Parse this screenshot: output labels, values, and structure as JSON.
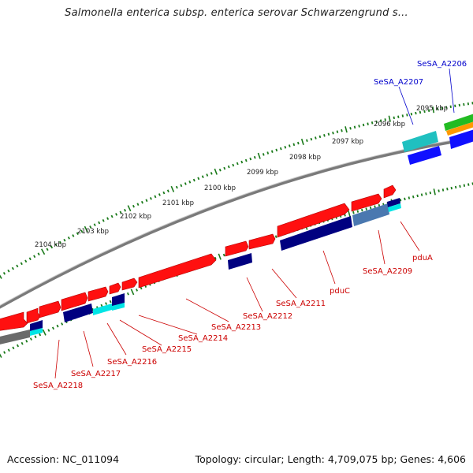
{
  "title": "Salmonella enterica subsp. enterica serovar Schwarzengrund s...",
  "footer": {
    "accession": "Accession: NC_011094",
    "summary": "Topology: circular; Length: 4,709,075 bp; Genes: 4,606"
  },
  "ruler_labels": [
    "2095 kbp",
    "2096 kbp",
    "2097 kbp",
    "2098 kbp",
    "2099 kbp",
    "2100 kbp",
    "2101 kbp",
    "2102 kbp",
    "2103 kbp",
    "2104 kbp"
  ],
  "gene_labels": {
    "top": [
      "SeSA_A2206",
      "SeSA_A2207"
    ],
    "bottom": [
      "pduA",
      "SeSA_A2209",
      "pduC",
      "SeSA_A2211",
      "SeSA_A2212",
      "SeSA_A2213",
      "SeSA_A2214",
      "SeSA_A2215",
      "SeSA_A2216",
      "SeSA_A2217",
      "SeSA_A2218"
    ]
  },
  "colors": {
    "forward_gene": "#ff0000",
    "reverse_cds": "#000080",
    "cyan": "#00e5e5",
    "backbone": "#808080",
    "tick": "#1a7a1a",
    "label_red": "#cc0000",
    "label_blue": "#0000cc"
  }
}
